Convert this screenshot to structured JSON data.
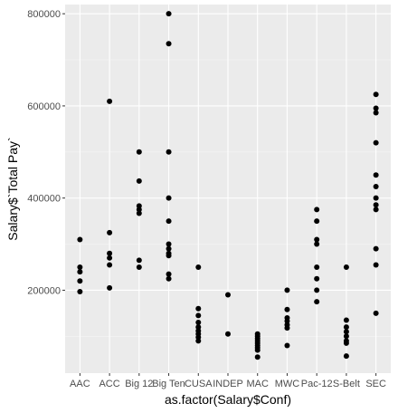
{
  "chart_data": {
    "type": "scatter",
    "xlabel": "as.factor(Salary$Conf)",
    "ylabel": "Salary$`Total Pay`",
    "categories": [
      "AAC",
      "ACC",
      "Big 12",
      "Big Ten",
      "CUSA",
      "INDEP",
      "MAC",
      "MWC",
      "Pac-12",
      "S-Belt",
      "SEC"
    ],
    "ylim": [
      20000,
      820000
    ],
    "yticks": [
      200000,
      400000,
      600000,
      800000
    ],
    "ytick_labels": [
      "200000",
      "400000",
      "600000",
      "800000"
    ],
    "grid": true,
    "colors": {
      "panel": "#ebebeb",
      "grid_major": "#ffffff",
      "grid_minor": "#f5f5f5",
      "point": "#000000"
    },
    "points": [
      {
        "cat": "AAC",
        "y": 310000
      },
      {
        "cat": "AAC",
        "y": 250000
      },
      {
        "cat": "AAC",
        "y": 240000
      },
      {
        "cat": "AAC",
        "y": 220000
      },
      {
        "cat": "AAC",
        "y": 197000
      },
      {
        "cat": "ACC",
        "y": 610000
      },
      {
        "cat": "ACC",
        "y": 325000
      },
      {
        "cat": "ACC",
        "y": 280000
      },
      {
        "cat": "ACC",
        "y": 270000
      },
      {
        "cat": "ACC",
        "y": 255000
      },
      {
        "cat": "ACC",
        "y": 205000
      },
      {
        "cat": "Big 12",
        "y": 500000
      },
      {
        "cat": "Big 12",
        "y": 437000
      },
      {
        "cat": "Big 12",
        "y": 383000
      },
      {
        "cat": "Big 12",
        "y": 375000
      },
      {
        "cat": "Big 12",
        "y": 367000
      },
      {
        "cat": "Big 12",
        "y": 265000
      },
      {
        "cat": "Big 12",
        "y": 250000
      },
      {
        "cat": "Big Ten",
        "y": 800000
      },
      {
        "cat": "Big Ten",
        "y": 735000
      },
      {
        "cat": "Big Ten",
        "y": 500000
      },
      {
        "cat": "Big Ten",
        "y": 400000
      },
      {
        "cat": "Big Ten",
        "y": 350000
      },
      {
        "cat": "Big Ten",
        "y": 300000
      },
      {
        "cat": "Big Ten",
        "y": 290000
      },
      {
        "cat": "Big Ten",
        "y": 280000
      },
      {
        "cat": "Big Ten",
        "y": 275000
      },
      {
        "cat": "Big Ten",
        "y": 235000
      },
      {
        "cat": "Big Ten",
        "y": 225000
      },
      {
        "cat": "CUSA",
        "y": 250000
      },
      {
        "cat": "CUSA",
        "y": 160000
      },
      {
        "cat": "CUSA",
        "y": 145000
      },
      {
        "cat": "CUSA",
        "y": 130000
      },
      {
        "cat": "CUSA",
        "y": 120000
      },
      {
        "cat": "CUSA",
        "y": 112000
      },
      {
        "cat": "CUSA",
        "y": 105000
      },
      {
        "cat": "CUSA",
        "y": 98000
      },
      {
        "cat": "CUSA",
        "y": 90000
      },
      {
        "cat": "INDEP",
        "y": 190000
      },
      {
        "cat": "INDEP",
        "y": 105000
      },
      {
        "cat": "MAC",
        "y": 105000
      },
      {
        "cat": "MAC",
        "y": 100000
      },
      {
        "cat": "MAC",
        "y": 95000
      },
      {
        "cat": "MAC",
        "y": 90000
      },
      {
        "cat": "MAC",
        "y": 85000
      },
      {
        "cat": "MAC",
        "y": 80000
      },
      {
        "cat": "MAC",
        "y": 75000
      },
      {
        "cat": "MAC",
        "y": 70000
      },
      {
        "cat": "MAC",
        "y": 55000
      },
      {
        "cat": "MWC",
        "y": 200000
      },
      {
        "cat": "MWC",
        "y": 158000
      },
      {
        "cat": "MWC",
        "y": 140000
      },
      {
        "cat": "MWC",
        "y": 133000
      },
      {
        "cat": "MWC",
        "y": 125000
      },
      {
        "cat": "MWC",
        "y": 118000
      },
      {
        "cat": "MWC",
        "y": 80000
      },
      {
        "cat": "Pac-12",
        "y": 375000
      },
      {
        "cat": "Pac-12",
        "y": 350000
      },
      {
        "cat": "Pac-12",
        "y": 310000
      },
      {
        "cat": "Pac-12",
        "y": 300000
      },
      {
        "cat": "Pac-12",
        "y": 250000
      },
      {
        "cat": "Pac-12",
        "y": 225000
      },
      {
        "cat": "Pac-12",
        "y": 200000
      },
      {
        "cat": "Pac-12",
        "y": 175000
      },
      {
        "cat": "S-Belt",
        "y": 250000
      },
      {
        "cat": "S-Belt",
        "y": 135000
      },
      {
        "cat": "S-Belt",
        "y": 120000
      },
      {
        "cat": "S-Belt",
        "y": 110000
      },
      {
        "cat": "S-Belt",
        "y": 100000
      },
      {
        "cat": "S-Belt",
        "y": 90000
      },
      {
        "cat": "S-Belt",
        "y": 85000
      },
      {
        "cat": "S-Belt",
        "y": 57000
      },
      {
        "cat": "SEC",
        "y": 625000
      },
      {
        "cat": "SEC",
        "y": 595000
      },
      {
        "cat": "SEC",
        "y": 585000
      },
      {
        "cat": "SEC",
        "y": 520000
      },
      {
        "cat": "SEC",
        "y": 450000
      },
      {
        "cat": "SEC",
        "y": 425000
      },
      {
        "cat": "SEC",
        "y": 400000
      },
      {
        "cat": "SEC",
        "y": 385000
      },
      {
        "cat": "SEC",
        "y": 375000
      },
      {
        "cat": "SEC",
        "y": 290000
      },
      {
        "cat": "SEC",
        "y": 255000
      },
      {
        "cat": "SEC",
        "y": 150000
      }
    ]
  }
}
